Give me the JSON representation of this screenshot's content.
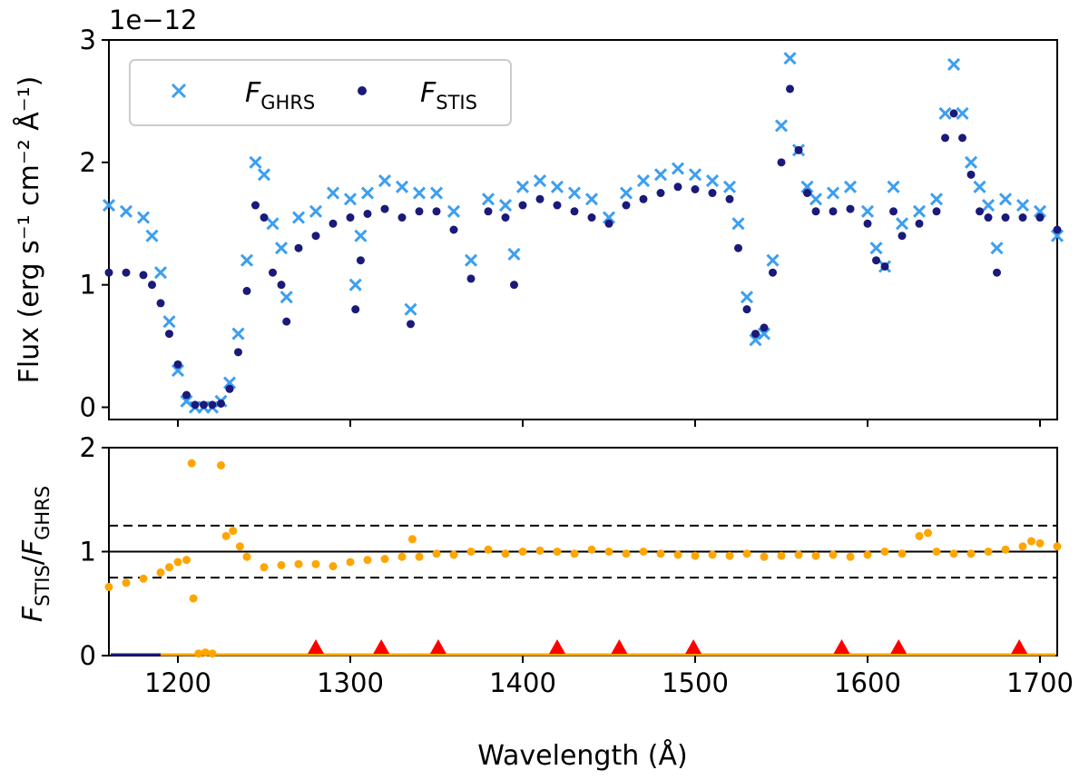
{
  "chart_data": [
    {
      "type": "scatter",
      "panel": "top",
      "offset_text": "1e−12",
      "ylabel": "Flux (erg s⁻¹ cm⁻² Å⁻¹)",
      "xlim": [
        1160,
        1710
      ],
      "ylim": [
        -0.1,
        3.0
      ],
      "xticks": [
        1200,
        1300,
        1400,
        1500,
        1600,
        1700
      ],
      "yticks": [
        0,
        1,
        2,
        3
      ],
      "ytick_labels": [
        "0",
        "1",
        "2",
        "3"
      ],
      "legend": {
        "position": "upper-left",
        "entries": [
          {
            "marker": "x",
            "label_main": "F",
            "label_sub": "GHRS"
          },
          {
            "marker": "dot",
            "label_main": "F",
            "label_sub": "STIS"
          }
        ]
      },
      "series": [
        {
          "name": "F_GHRS",
          "marker": "x",
          "color": "#3d9ff0",
          "x": [
            1160,
            1170,
            1180,
            1185,
            1190,
            1195,
            1200,
            1205,
            1210,
            1215,
            1220,
            1225,
            1230,
            1235,
            1240,
            1245,
            1250,
            1255,
            1260,
            1263,
            1270,
            1280,
            1290,
            1300,
            1303,
            1306,
            1310,
            1320,
            1330,
            1335,
            1340,
            1350,
            1360,
            1370,
            1380,
            1390,
            1395,
            1400,
            1410,
            1420,
            1430,
            1440,
            1450,
            1460,
            1470,
            1480,
            1490,
            1500,
            1510,
            1520,
            1525,
            1530,
            1535,
            1540,
            1545,
            1550,
            1555,
            1560,
            1565,
            1570,
            1580,
            1590,
            1600,
            1605,
            1610,
            1615,
            1620,
            1630,
            1640,
            1645,
            1650,
            1655,
            1660,
            1665,
            1670,
            1675,
            1680,
            1690,
            1700,
            1710
          ],
          "y": [
            1.65,
            1.6,
            1.55,
            1.4,
            1.1,
            0.7,
            0.3,
            0.05,
            0.0,
            0.0,
            0.0,
            0.05,
            0.2,
            0.6,
            1.2,
            2.0,
            1.9,
            1.5,
            1.3,
            0.9,
            1.55,
            1.6,
            1.75,
            1.7,
            1.0,
            1.4,
            1.75,
            1.85,
            1.8,
            0.8,
            1.75,
            1.75,
            1.6,
            1.2,
            1.7,
            1.65,
            1.25,
            1.8,
            1.85,
            1.8,
            1.75,
            1.7,
            1.55,
            1.75,
            1.85,
            1.9,
            1.95,
            1.9,
            1.85,
            1.8,
            1.5,
            0.9,
            0.55,
            0.6,
            1.2,
            2.3,
            2.85,
            2.1,
            1.8,
            1.7,
            1.75,
            1.8,
            1.6,
            1.3,
            1.15,
            1.8,
            1.5,
            1.6,
            1.7,
            2.4,
            2.8,
            2.4,
            2.0,
            1.8,
            1.65,
            1.3,
            1.7,
            1.65,
            1.6,
            1.4
          ]
        },
        {
          "name": "F_STIS",
          "marker": "dot",
          "color": "#1a1a7a",
          "x": [
            1160,
            1170,
            1180,
            1185,
            1190,
            1195,
            1200,
            1205,
            1210,
            1215,
            1220,
            1225,
            1230,
            1235,
            1240,
            1245,
            1250,
            1255,
            1260,
            1263,
            1270,
            1280,
            1290,
            1300,
            1303,
            1306,
            1310,
            1320,
            1330,
            1335,
            1340,
            1350,
            1360,
            1370,
            1380,
            1390,
            1395,
            1400,
            1410,
            1420,
            1430,
            1440,
            1450,
            1460,
            1470,
            1480,
            1490,
            1500,
            1510,
            1520,
            1525,
            1530,
            1535,
            1540,
            1545,
            1550,
            1555,
            1560,
            1565,
            1570,
            1580,
            1590,
            1600,
            1605,
            1610,
            1615,
            1620,
            1630,
            1640,
            1645,
            1650,
            1655,
            1660,
            1665,
            1670,
            1675,
            1680,
            1690,
            1700,
            1710
          ],
          "y": [
            1.1,
            1.1,
            1.08,
            1.0,
            0.85,
            0.6,
            0.35,
            0.1,
            0.02,
            0.02,
            0.02,
            0.03,
            0.15,
            0.45,
            0.95,
            1.65,
            1.55,
            1.1,
            1.0,
            0.7,
            1.3,
            1.4,
            1.5,
            1.55,
            0.8,
            1.2,
            1.58,
            1.62,
            1.55,
            0.68,
            1.6,
            1.6,
            1.45,
            1.05,
            1.6,
            1.55,
            1.0,
            1.65,
            1.7,
            1.65,
            1.6,
            1.55,
            1.5,
            1.65,
            1.7,
            1.75,
            1.8,
            1.78,
            1.75,
            1.7,
            1.3,
            0.8,
            0.6,
            0.65,
            1.1,
            2.0,
            2.6,
            2.1,
            1.75,
            1.6,
            1.6,
            1.62,
            1.5,
            1.2,
            1.15,
            1.6,
            1.4,
            1.5,
            1.6,
            2.2,
            2.4,
            2.2,
            1.9,
            1.6,
            1.55,
            1.1,
            1.55,
            1.55,
            1.55,
            1.45
          ]
        }
      ]
    },
    {
      "type": "scatter",
      "panel": "bottom",
      "ylabel_main": "F",
      "ylabel_num_sub": "STIS",
      "ylabel_den_sub": "GHRS",
      "xlabel": "Wavelength (Å)",
      "xlim": [
        1160,
        1710
      ],
      "ylim": [
        0,
        2
      ],
      "xticks": [
        1200,
        1300,
        1400,
        1500,
        1600,
        1700
      ],
      "xtick_labels": [
        "1200",
        "1300",
        "1400",
        "1500",
        "1600",
        "1700"
      ],
      "yticks": [
        0,
        1,
        2
      ],
      "ytick_labels": [
        "0",
        "1",
        "2"
      ],
      "reference_lines": [
        {
          "y": 1.0,
          "style": "solid"
        },
        {
          "y": 1.25,
          "style": "dashed"
        },
        {
          "y": 0.75,
          "style": "dashed"
        }
      ],
      "series": [
        {
          "name": "F_STIS/F_GHRS",
          "marker": "dot",
          "color": "#ffa500",
          "x": [
            1160,
            1170,
            1180,
            1190,
            1195,
            1200,
            1205,
            1208,
            1209,
            1212,
            1216,
            1220,
            1225,
            1228,
            1232,
            1236,
            1240,
            1250,
            1260,
            1270,
            1280,
            1290,
            1300,
            1310,
            1320,
            1330,
            1336,
            1340,
            1350,
            1360,
            1370,
            1380,
            1390,
            1400,
            1410,
            1420,
            1430,
            1440,
            1450,
            1460,
            1470,
            1480,
            1490,
            1500,
            1510,
            1520,
            1530,
            1540,
            1550,
            1560,
            1570,
            1580,
            1590,
            1600,
            1610,
            1620,
            1630,
            1635,
            1640,
            1650,
            1660,
            1670,
            1680,
            1690,
            1695,
            1700,
            1710
          ],
          "y": [
            0.66,
            0.7,
            0.74,
            0.8,
            0.85,
            0.9,
            0.92,
            1.85,
            0.55,
            0.02,
            0.03,
            0.02,
            1.83,
            1.15,
            1.2,
            1.05,
            0.95,
            0.85,
            0.87,
            0.88,
            0.88,
            0.86,
            0.9,
            0.92,
            0.93,
            0.95,
            1.12,
            0.95,
            0.98,
            0.97,
            1.0,
            1.02,
            0.98,
            1.0,
            1.01,
            1.0,
            0.98,
            1.02,
            1.0,
            0.98,
            1.0,
            0.98,
            0.97,
            0.96,
            0.97,
            0.96,
            0.98,
            0.95,
            0.96,
            0.97,
            0.96,
            0.97,
            0.95,
            0.97,
            1.0,
            0.98,
            1.15,
            1.18,
            1.0,
            0.98,
            0.98,
            1.0,
            1.02,
            1.05,
            1.1,
            1.08,
            1.05
          ]
        },
        {
          "name": "markers",
          "marker": "triangle",
          "color": "#ff0000",
          "x": [
            1280,
            1318,
            1351,
            1420,
            1456,
            1499,
            1585,
            1618,
            1688
          ],
          "y": [
            0.05,
            0.05,
            0.05,
            0.05,
            0.05,
            0.05,
            0.05,
            0.05,
            0.05
          ]
        }
      ]
    }
  ]
}
